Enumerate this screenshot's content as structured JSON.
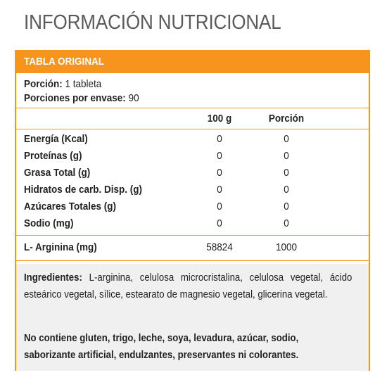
{
  "header": {
    "title": "INFORMACIÓN NUTRICIONAL"
  },
  "table": {
    "band_label": "TABLA ORIGINAL",
    "serving_label": "Porción:",
    "serving_value": "1 tableta",
    "servings_label": "Porciones por envase:",
    "servings_value": "90",
    "col_100g": "100 g",
    "col_portion": "Porción",
    "rows": [
      {
        "label": "Energía (Kcal)",
        "per100": "0",
        "portion": "0"
      },
      {
        "label": "Proteínas (g)",
        "per100": "0",
        "portion": "0"
      },
      {
        "label": "Grasa Total (g)",
        "per100": "0",
        "portion": "0"
      },
      {
        "label": "Hidratos de carb. Disp. (g)",
        "per100": "0",
        "portion": "0"
      },
      {
        "label": "Azúcares Totales (g)",
        "per100": "0",
        "portion": "0"
      },
      {
        "label": "Sodio (mg)",
        "per100": "0",
        "portion": "0"
      }
    ],
    "extra_row": {
      "label": "L- Arginina (mg)",
      "per100": "58824",
      "portion": "1000"
    }
  },
  "ingredients": {
    "label": "Ingredientes:",
    "text": " L-arginina, celulosa microcristalina, celulosa vegetal, ácido esteárico vegetal, sílice, estearato de magnesio vegetal, glicerina vegetal.",
    "warning": "No contiene gluten, trigo, leche, soya, levadura, azúcar, sodio, saborizante artificial, endulzantes, preservantes ni colorantes."
  },
  "colors": {
    "accent": "#f7941d",
    "title": "#5a5a5a",
    "panel": "#f0f0f0"
  }
}
